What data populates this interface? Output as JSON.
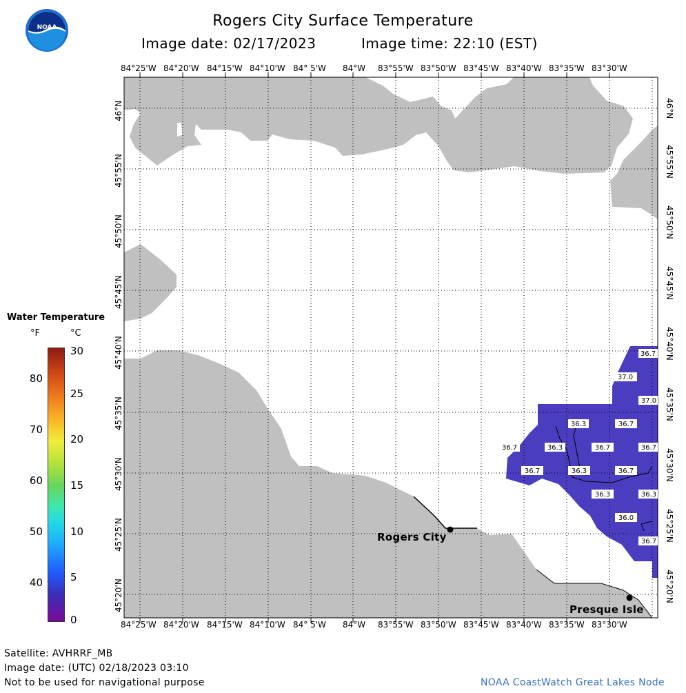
{
  "header": {
    "title": "Rogers City Surface Temperature",
    "image_date": "Image date: 02/17/2023",
    "image_time": "Image time: 22:10 (EST)",
    "logo_text": "NOAA"
  },
  "map": {
    "lon_labels": [
      "84°25'W",
      "84°20'W",
      "84°15'W",
      "84°10'W",
      "84° 5'W",
      "84°W",
      "83°55'W",
      "83°50'W",
      "83°45'W",
      "83°40'W",
      "83°35'W",
      "83°30'W"
    ],
    "lat_labels": [
      "46°N",
      "45°55'N",
      "45°50'N",
      "45°45'N",
      "45°40'N",
      "45°35'N",
      "45°30'N",
      "45°25'N",
      "45°20'N"
    ],
    "places": [
      {
        "name": "Rogers City"
      },
      {
        "name": "Presque Isle"
      }
    ],
    "land_color": "#c0c0c0",
    "water_temp_color": "#4b3dc0",
    "temperature_labels": [
      "36.7",
      "37.0",
      "37.0",
      "36.3",
      "36.7",
      "36.7",
      "36.3",
      "36.7",
      "36.7",
      "36.7",
      "36.3",
      "36.7",
      "36.3",
      "36.3",
      "36.0",
      "36.7"
    ]
  },
  "legend": {
    "title": "Water Temperature",
    "unit_f": "°F",
    "unit_c": "°C",
    "f_ticks": [
      "80",
      "70",
      "60",
      "50",
      "40"
    ],
    "c_ticks": [
      "30",
      "25",
      "20",
      "15",
      "10",
      "5",
      "0"
    ],
    "colorscale": [
      "#7a0a9a",
      "#3a2fb8",
      "#1f5cff",
      "#22d8e8",
      "#6ad65a",
      "#f2ec3a",
      "#f07c1c",
      "#8e1a14"
    ]
  },
  "footer": {
    "satellite": "Satellite: AVHRRF_MB",
    "utc_date": "Image date: (UTC) 02/18/2023  03:10",
    "disclaimer": "Not to be used for navigational purpose",
    "credit": "NOAA CoastWatch Great Lakes Node"
  }
}
